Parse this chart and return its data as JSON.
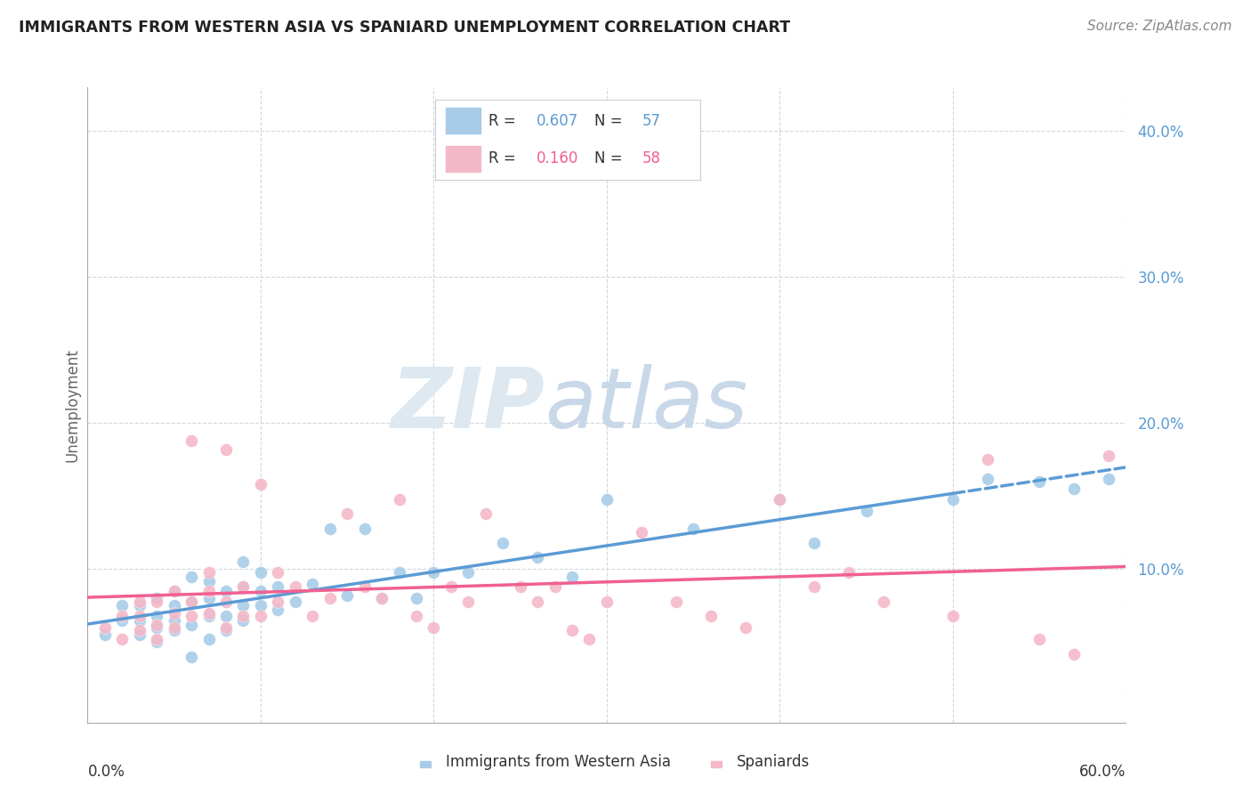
{
  "title": "IMMIGRANTS FROM WESTERN ASIA VS SPANIARD UNEMPLOYMENT CORRELATION CHART",
  "source": "Source: ZipAtlas.com",
  "ylabel": "Unemployment",
  "xlim": [
    0.0,
    0.6
  ],
  "ylim": [
    -0.005,
    0.43
  ],
  "blue_color": "#a8cce8",
  "pink_color": "#f4b8c8",
  "blue_line_color": "#5b9bd5",
  "pink_line_color": "#f06090",
  "blue_scatter_x": [
    0.01,
    0.02,
    0.02,
    0.03,
    0.03,
    0.03,
    0.04,
    0.04,
    0.04,
    0.04,
    0.05,
    0.05,
    0.05,
    0.05,
    0.06,
    0.06,
    0.06,
    0.06,
    0.07,
    0.07,
    0.07,
    0.07,
    0.08,
    0.08,
    0.08,
    0.09,
    0.09,
    0.09,
    0.09,
    0.1,
    0.1,
    0.1,
    0.11,
    0.11,
    0.12,
    0.13,
    0.14,
    0.15,
    0.16,
    0.17,
    0.18,
    0.19,
    0.2,
    0.22,
    0.24,
    0.26,
    0.28,
    0.3,
    0.35,
    0.4,
    0.42,
    0.45,
    0.5,
    0.52,
    0.55,
    0.57,
    0.59
  ],
  "blue_scatter_y": [
    0.055,
    0.065,
    0.075,
    0.055,
    0.065,
    0.075,
    0.05,
    0.06,
    0.068,
    0.08,
    0.058,
    0.065,
    0.075,
    0.085,
    0.04,
    0.062,
    0.078,
    0.095,
    0.052,
    0.068,
    0.08,
    0.092,
    0.058,
    0.068,
    0.085,
    0.065,
    0.075,
    0.088,
    0.105,
    0.075,
    0.085,
    0.098,
    0.072,
    0.088,
    0.078,
    0.09,
    0.128,
    0.082,
    0.128,
    0.08,
    0.098,
    0.08,
    0.098,
    0.098,
    0.118,
    0.108,
    0.095,
    0.148,
    0.128,
    0.148,
    0.118,
    0.14,
    0.148,
    0.162,
    0.16,
    0.155,
    0.162
  ],
  "pink_scatter_x": [
    0.01,
    0.02,
    0.02,
    0.03,
    0.03,
    0.03,
    0.04,
    0.04,
    0.04,
    0.05,
    0.05,
    0.05,
    0.06,
    0.06,
    0.06,
    0.07,
    0.07,
    0.07,
    0.08,
    0.08,
    0.08,
    0.09,
    0.09,
    0.1,
    0.1,
    0.11,
    0.11,
    0.12,
    0.13,
    0.14,
    0.15,
    0.16,
    0.17,
    0.18,
    0.19,
    0.2,
    0.21,
    0.22,
    0.23,
    0.25,
    0.26,
    0.27,
    0.28,
    0.29,
    0.3,
    0.32,
    0.34,
    0.36,
    0.38,
    0.4,
    0.42,
    0.44,
    0.46,
    0.5,
    0.52,
    0.55,
    0.57,
    0.59
  ],
  "pink_scatter_y": [
    0.06,
    0.052,
    0.068,
    0.058,
    0.068,
    0.078,
    0.052,
    0.062,
    0.078,
    0.06,
    0.07,
    0.085,
    0.068,
    0.078,
    0.188,
    0.07,
    0.085,
    0.098,
    0.06,
    0.078,
    0.182,
    0.068,
    0.088,
    0.068,
    0.158,
    0.078,
    0.098,
    0.088,
    0.068,
    0.08,
    0.138,
    0.088,
    0.08,
    0.148,
    0.068,
    0.06,
    0.088,
    0.078,
    0.138,
    0.088,
    0.078,
    0.088,
    0.058,
    0.052,
    0.078,
    0.125,
    0.078,
    0.068,
    0.06,
    0.148,
    0.088,
    0.098,
    0.078,
    0.068,
    0.175,
    0.052,
    0.042,
    0.178
  ],
  "grid_color": "#d0d8e0",
  "watermark_zip": "ZIP",
  "watermark_atlas": "atlas",
  "watermark_color": "#dde8f0"
}
